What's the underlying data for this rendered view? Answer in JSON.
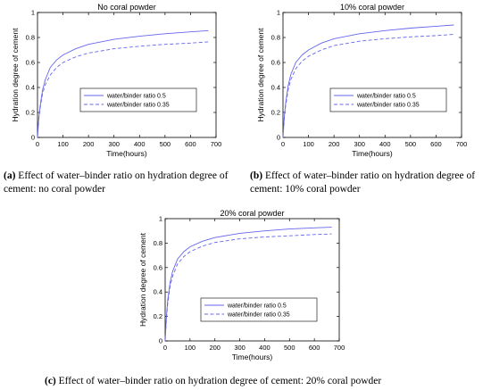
{
  "chart_data": [
    {
      "type": "line",
      "title": "No coral powder",
      "xlabel": "Time(hours)",
      "ylabel": "Hydration degree of cement",
      "xlim": [
        0,
        700
      ],
      "ylim": [
        0,
        1
      ],
      "xticks": [
        0,
        100,
        200,
        300,
        400,
        500,
        600,
        700
      ],
      "yticks": [
        0,
        0.2,
        0.4,
        0.6,
        0.8,
        1
      ],
      "ytick_labels": [
        "0",
        "0.2",
        "0.4",
        "0.6",
        "0.8",
        "1"
      ],
      "legend_position": "center-right",
      "series": [
        {
          "name": "water/binder ratio 0.5",
          "style": "solid",
          "color": "#6666ee",
          "x": [
            0,
            5,
            10,
            20,
            30,
            50,
            75,
            100,
            150,
            200,
            300,
            400,
            500,
            600,
            670
          ],
          "y": [
            0.0,
            0.15,
            0.25,
            0.38,
            0.46,
            0.56,
            0.62,
            0.66,
            0.71,
            0.745,
            0.785,
            0.81,
            0.83,
            0.845,
            0.855
          ]
        },
        {
          "name": "water/binder ratio 0.35",
          "style": "dashed",
          "color": "#6666ee",
          "x": [
            0,
            5,
            10,
            20,
            30,
            50,
            75,
            100,
            150,
            200,
            300,
            400,
            500,
            600,
            670
          ],
          "y": [
            0.0,
            0.14,
            0.23,
            0.35,
            0.42,
            0.5,
            0.56,
            0.6,
            0.645,
            0.675,
            0.71,
            0.73,
            0.745,
            0.755,
            0.765
          ]
        }
      ]
    },
    {
      "type": "line",
      "title": "10% coral powder",
      "xlabel": "Time(hours)",
      "ylabel": "Hydration degree of cement",
      "xlim": [
        0,
        700
      ],
      "ylim": [
        0,
        1
      ],
      "xticks": [
        0,
        100,
        200,
        300,
        400,
        500,
        600,
        700
      ],
      "yticks": [
        0,
        0.2,
        0.4,
        0.6,
        0.8,
        1
      ],
      "ytick_labels": [
        "0",
        "0.2",
        "0.4",
        "0.6",
        "0.8",
        "1"
      ],
      "legend_position": "center-right",
      "series": [
        {
          "name": "water/binder ratio 0.5",
          "style": "solid",
          "color": "#6666ee",
          "x": [
            0,
            5,
            10,
            20,
            30,
            50,
            75,
            100,
            150,
            200,
            300,
            400,
            500,
            600,
            670
          ],
          "y": [
            0.0,
            0.16,
            0.27,
            0.41,
            0.5,
            0.6,
            0.66,
            0.7,
            0.755,
            0.79,
            0.83,
            0.855,
            0.875,
            0.89,
            0.9
          ]
        },
        {
          "name": "water/binder ratio 0.35",
          "style": "dashed",
          "color": "#6666ee",
          "x": [
            0,
            5,
            10,
            20,
            30,
            50,
            75,
            100,
            150,
            200,
            300,
            400,
            500,
            600,
            670
          ],
          "y": [
            0.0,
            0.15,
            0.25,
            0.38,
            0.46,
            0.55,
            0.61,
            0.65,
            0.7,
            0.735,
            0.77,
            0.79,
            0.805,
            0.815,
            0.825
          ]
        }
      ]
    },
    {
      "type": "line",
      "title": "20% coral powder",
      "xlabel": "Time(hours)",
      "ylabel": "Hydration degree of cement",
      "xlim": [
        0,
        700
      ],
      "ylim": [
        0,
        1
      ],
      "xticks": [
        0,
        100,
        200,
        300,
        400,
        500,
        600,
        700
      ],
      "yticks": [
        0,
        0.2,
        0.4,
        0.6,
        0.8,
        1
      ],
      "ytick_labels": [
        "0",
        "0.2",
        "0.4",
        "0.6",
        "0.8",
        "1"
      ],
      "legend_position": "bottom-right",
      "series": [
        {
          "name": "water/binder ratio 0.5",
          "style": "solid",
          "color": "#6666ee",
          "x": [
            0,
            5,
            10,
            20,
            30,
            50,
            75,
            100,
            150,
            200,
            300,
            400,
            500,
            600,
            670
          ],
          "y": [
            0.0,
            0.2,
            0.33,
            0.48,
            0.57,
            0.67,
            0.73,
            0.77,
            0.815,
            0.845,
            0.88,
            0.9,
            0.915,
            0.925,
            0.93
          ]
        },
        {
          "name": "water/binder ratio 0.35",
          "style": "dashed",
          "color": "#6666ee",
          "x": [
            0,
            5,
            10,
            20,
            30,
            50,
            75,
            100,
            150,
            200,
            300,
            400,
            500,
            600,
            670
          ],
          "y": [
            0.0,
            0.18,
            0.3,
            0.45,
            0.53,
            0.63,
            0.69,
            0.73,
            0.775,
            0.805,
            0.835,
            0.85,
            0.86,
            0.87,
            0.875
          ]
        }
      ]
    }
  ],
  "captions": [
    {
      "label": "(a)",
      "line1": " Effect of water–binder ratio on hydration degree of",
      "line2": "cement: no coral powder"
    },
    {
      "label": "(b)",
      "line1": " Effect of water–binder ratio on hydration degree of",
      "line2": "cement: 10% coral powder"
    },
    {
      "label": "(c)",
      "line1": " Effect of water–binder ratio on hydration degree of cement: 20% coral powder"
    }
  ]
}
